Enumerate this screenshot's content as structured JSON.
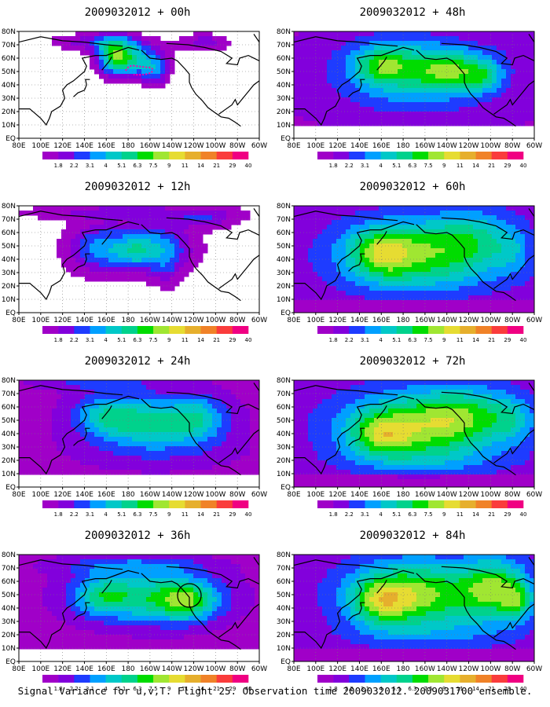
{
  "caption": "Signal Variance for u,v,T. Flight 25. Observation time 2009032012. 2009031700 ensemble.",
  "panels": [
    {
      "title": "2009032012 + 00h"
    },
    {
      "title": "2009032012 + 48h"
    },
    {
      "title": "2009032012 + 12h"
    },
    {
      "title": "2009032012 + 60h"
    },
    {
      "title": "2009032012 + 24h"
    },
    {
      "title": "2009032012 + 72h"
    },
    {
      "title": "2009032012 + 36h"
    },
    {
      "title": "2009032012 + 84h"
    }
  ],
  "map": {
    "x_ticks": [
      "80E",
      "100E",
      "120E",
      "140E",
      "160E",
      "180",
      "160W",
      "140W",
      "120W",
      "100W",
      "80W",
      "60W"
    ],
    "y_ticks": [
      "EQ",
      "10N",
      "20N",
      "30N",
      "40N",
      "50N",
      "60N",
      "70N",
      "80N"
    ],
    "lon_range": [
      80,
      300
    ],
    "lat_range": [
      0,
      80
    ]
  },
  "colorbar": {
    "labels": [
      "1.8",
      "2.2",
      "3.1",
      "4",
      "5.1",
      "6.3",
      "7.5",
      "9",
      "11",
      "14",
      "21",
      "29",
      "40"
    ],
    "colors": [
      "#a000c8",
      "#8200dc",
      "#1e3cff",
      "#00a0ff",
      "#00c8c8",
      "#00d28c",
      "#00dc00",
      "#a0e632",
      "#e6dc32",
      "#e6af2d",
      "#f08228",
      "#fa3c3c",
      "#f00082"
    ]
  }
}
